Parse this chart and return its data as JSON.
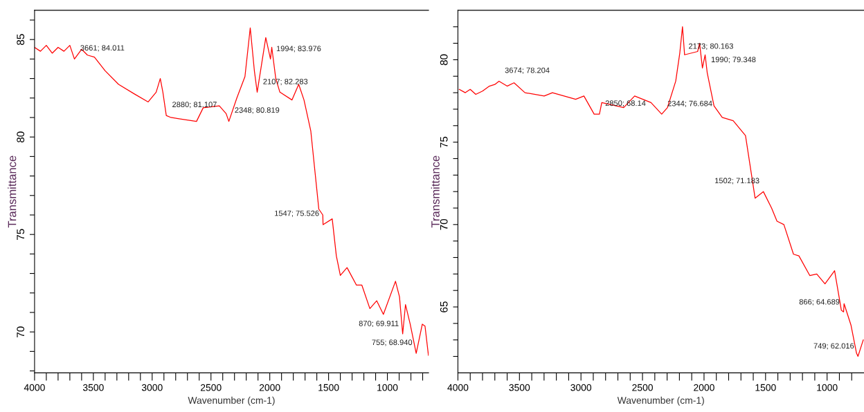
{
  "chart_data": [
    {
      "type": "line",
      "xlabel": "Wavenumber (cm-1)",
      "ylabel": "Transmittance",
      "color": "#ff0000",
      "grid": false,
      "legend": false,
      "marker": "none",
      "line_style": "solid",
      "xlim": [
        4000,
        650
      ],
      "ylim": [
        67.9,
        86.5
      ],
      "xticks": [
        4000,
        {
          "value": 3900,
          "label": null
        },
        {
          "value": 3800,
          "label": null
        },
        {
          "value": 3700,
          "label": null
        },
        {
          "value": 3600,
          "label": null
        },
        3500,
        {
          "value": 3400,
          "label": null
        },
        {
          "value": 3300,
          "label": null
        },
        {
          "value": 3200,
          "label": null
        },
        {
          "value": 3100,
          "label": null
        },
        3000,
        {
          "value": 2900,
          "label": null
        },
        {
          "value": 2800,
          "label": null
        },
        {
          "value": 2700,
          "label": null
        },
        {
          "value": 2600,
          "label": null
        },
        2500,
        {
          "value": 2400,
          "label": null
        },
        {
          "value": 2300,
          "label": null
        },
        {
          "value": 2200,
          "label": null
        },
        {
          "value": 2100,
          "label": null
        },
        2000,
        {
          "value": 1900,
          "label": null
        },
        {
          "value": 1800,
          "label": null
        },
        {
          "value": 1700,
          "label": null
        },
        {
          "value": 1600,
          "label": null
        },
        1500,
        {
          "value": 1400,
          "label": null
        },
        {
          "value": 1300,
          "label": null
        },
        {
          "value": 1200,
          "label": null
        },
        {
          "value": 1100,
          "label": null
        },
        1000,
        {
          "value": 900,
          "label": null
        },
        {
          "value": 800,
          "label": null
        },
        {
          "value": 700,
          "label": null
        }
      ],
      "yticks": [
        {
          "value": 68,
          "label": null
        },
        {
          "value": 69,
          "label": null
        },
        70,
        {
          "value": 71,
          "label": null
        },
        {
          "value": 72,
          "label": null
        },
        {
          "value": 73,
          "label": null
        },
        {
          "value": 74,
          "label": null
        },
        75,
        {
          "value": 76,
          "label": null
        },
        {
          "value": 77,
          "label": null
        },
        {
          "value": 78,
          "label": null
        },
        {
          "value": 79,
          "label": null
        },
        80,
        {
          "value": 81,
          "label": null
        },
        {
          "value": 82,
          "label": null
        },
        {
          "value": 83,
          "label": null
        },
        {
          "value": 84,
          "label": null
        },
        85,
        {
          "value": 86,
          "label": null
        }
      ],
      "x": [
        4000,
        3950,
        3900,
        3850,
        3800,
        3750,
        3700,
        3661,
        3600,
        3550,
        3491,
        3400,
        3286,
        3149,
        3034,
        2966,
        2931,
        2909,
        2880,
        2840,
        2623,
        2566,
        2429,
        2371,
        2348,
        2280,
        2211,
        2166,
        2131,
        2107,
        2034,
        1994,
        1983,
        1949,
        1914,
        1811,
        1754,
        1709,
        1651,
        1583,
        1549,
        1547,
        1469,
        1434,
        1400,
        1343,
        1263,
        1217,
        1149,
        1091,
        1034,
        931,
        897,
        870,
        846,
        806,
        755,
        703,
        680,
        651
      ],
      "values": [
        84.6,
        84.4,
        84.7,
        84.3,
        84.6,
        84.4,
        84.7,
        84.0,
        84.5,
        84.2,
        84.1,
        83.4,
        82.7,
        82.2,
        81.8,
        82.3,
        83.0,
        82.3,
        81.1,
        81.0,
        80.8,
        81.5,
        81.6,
        81.2,
        80.8,
        82.0,
        83.1,
        85.6,
        83.4,
        82.3,
        85.1,
        84.0,
        84.6,
        83.0,
        82.3,
        81.9,
        82.7,
        81.9,
        80.3,
        76.3,
        76.0,
        75.5,
        75.8,
        73.9,
        72.9,
        73.3,
        72.4,
        72.4,
        71.2,
        71.6,
        70.9,
        72.6,
        71.8,
        69.9,
        71.4,
        70.4,
        68.9,
        70.4,
        70.3,
        68.8
      ],
      "annotations": [
        {
          "text": "3661; 84.011",
          "x": 3661,
          "y": 84.011
        },
        {
          "text": "2880; 81.107",
          "x": 2880,
          "y": 81.107
        },
        {
          "text": "2348; 80.819",
          "x": 2348,
          "y": 80.819
        },
        {
          "text": "2107; 82.283",
          "x": 2107,
          "y": 82.283
        },
        {
          "text": "1994; 83.976",
          "x": 1994,
          "y": 83.976
        },
        {
          "text": "1547; 75.526",
          "x": 1547,
          "y": 75.526
        },
        {
          "text": "870; 69.911",
          "x": 870,
          "y": 69.911
        },
        {
          "text": "755; 68.940",
          "x": 755,
          "y": 68.94
        }
      ]
    },
    {
      "type": "line",
      "xlabel": "Wavenumber (cm-1)",
      "ylabel": "Transmittance",
      "color": "#ff0000",
      "grid": false,
      "legend": false,
      "marker": "none",
      "line_style": "solid",
      "xlim": [
        4000,
        700
      ],
      "ylim": [
        61,
        83
      ],
      "xticks": [
        4000,
        {
          "value": 3900,
          "label": null
        },
        {
          "value": 3800,
          "label": null
        },
        {
          "value": 3700,
          "label": null
        },
        {
          "value": 3600,
          "label": null
        },
        3500,
        {
          "value": 3400,
          "label": null
        },
        {
          "value": 3300,
          "label": null
        },
        {
          "value": 3200,
          "label": null
        },
        {
          "value": 3100,
          "label": null
        },
        3000,
        {
          "value": 2900,
          "label": null
        },
        {
          "value": 2800,
          "label": null
        },
        {
          "value": 2700,
          "label": null
        },
        {
          "value": 2600,
          "label": null
        },
        2500,
        {
          "value": 2400,
          "label": null
        },
        {
          "value": 2300,
          "label": null
        },
        {
          "value": 2200,
          "label": null
        },
        {
          "value": 2100,
          "label": null
        },
        2000,
        {
          "value": 1900,
          "label": null
        },
        {
          "value": 1800,
          "label": null
        },
        {
          "value": 1700,
          "label": null
        },
        {
          "value": 1600,
          "label": null
        },
        1500,
        {
          "value": 1400,
          "label": null
        },
        {
          "value": 1300,
          "label": null
        },
        {
          "value": 1200,
          "label": null
        },
        {
          "value": 1100,
          "label": null
        },
        1000,
        {
          "value": 900,
          "label": null
        },
        {
          "value": 800,
          "label": null
        }
      ],
      "yticks": [
        {
          "value": 62,
          "label": null
        },
        {
          "value": 63,
          "label": null
        },
        {
          "value": 64,
          "label": null
        },
        65,
        {
          "value": 66,
          "label": null
        },
        {
          "value": 67,
          "label": null
        },
        {
          "value": 68,
          "label": null
        },
        {
          "value": 69,
          "label": null
        },
        70,
        {
          "value": 71,
          "label": null
        },
        {
          "value": 72,
          "label": null
        },
        {
          "value": 73,
          "label": null
        },
        {
          "value": 74,
          "label": null
        },
        75,
        {
          "value": 76,
          "label": null
        },
        {
          "value": 77,
          "label": null
        },
        {
          "value": 78,
          "label": null
        },
        {
          "value": 79,
          "label": null
        },
        80,
        {
          "value": 81,
          "label": null
        },
        {
          "value": 82,
          "label": null
        }
      ],
      "x": [
        3989,
        3940,
        3900,
        3855,
        3800,
        3744,
        3700,
        3666,
        3600,
        3544,
        3455,
        3299,
        3232,
        3043,
        2976,
        2893,
        2850,
        2831,
        2653,
        2564,
        2431,
        2344,
        2297,
        2230,
        2197,
        2175,
        2158,
        2052,
        2036,
        2013,
        1991,
        1974,
        1919,
        1852,
        1763,
        1663,
        1585,
        1518,
        1451,
        1407,
        1351,
        1273,
        1229,
        1140,
        1084,
        1017,
        939,
        884,
        866,
        862,
        806,
        761,
        749,
        706
      ],
      "values": [
        78.2,
        78.0,
        78.2,
        77.9,
        78.1,
        78.4,
        78.5,
        78.7,
        78.4,
        78.6,
        78.0,
        77.8,
        78.0,
        77.6,
        77.8,
        76.7,
        76.7,
        77.4,
        77.1,
        77.8,
        77.4,
        76.7,
        77.1,
        78.7,
        80.4,
        82.0,
        80.3,
        80.5,
        81.0,
        79.5,
        80.3,
        79.2,
        77.2,
        76.5,
        76.3,
        75.4,
        71.6,
        72.0,
        71.0,
        70.2,
        70.0,
        68.2,
        68.1,
        66.9,
        67.0,
        66.4,
        67.2,
        64.8,
        64.7,
        65.2,
        63.9,
        62.2,
        62.0,
        63.0
      ],
      "annotations": [
        {
          "text": "3674; 78.204",
          "x": 3666,
          "y": 78.7
        },
        {
          "text": "2850; 68.14",
          "x": 2850,
          "y": 76.7
        },
        {
          "text": "2344; 76.684",
          "x": 2344,
          "y": 76.684
        },
        {
          "text": "2173; 80.163",
          "x": 2173,
          "y": 80.163
        },
        {
          "text": "1990; 79.348",
          "x": 1990,
          "y": 79.348
        },
        {
          "text": "1502; 71.183",
          "x": 1518,
          "y": 72.0
        },
        {
          "text": "866; 64.689",
          "x": 866,
          "y": 64.689
        },
        {
          "text": "749; 62.016",
          "x": 749,
          "y": 62.016
        }
      ]
    }
  ]
}
